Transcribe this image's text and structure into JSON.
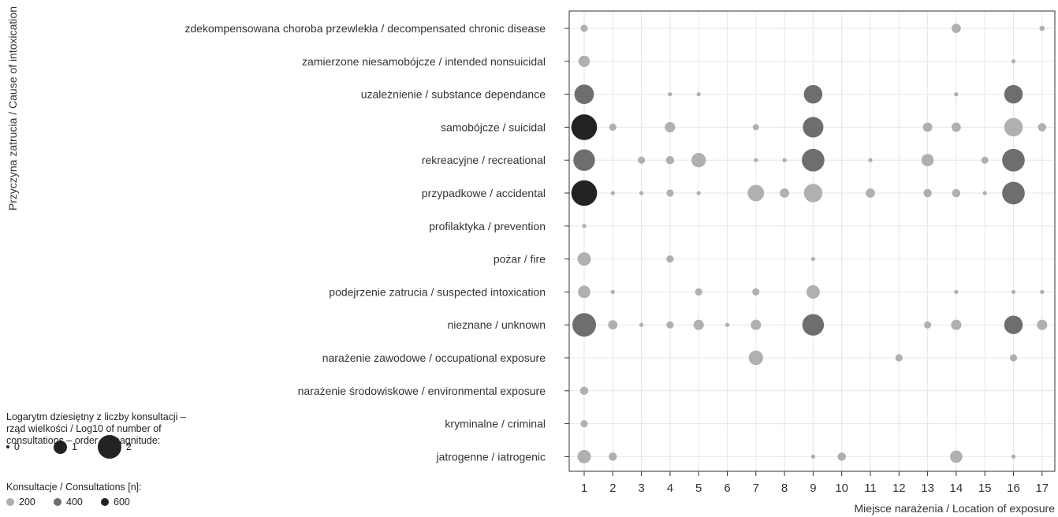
{
  "chart_data": {
    "type": "scatter",
    "title": "",
    "xlabel": "Miejsce narażenia / Location of exposure",
    "ylabel": "Przyczyna zatrucia / Cause of intoxication",
    "x_categories": [
      "1",
      "2",
      "3",
      "4",
      "5",
      "6",
      "7",
      "8",
      "9",
      "10",
      "11",
      "12",
      "13",
      "14",
      "15",
      "16",
      "17"
    ],
    "y_categories": [
      "zdekompensowana choroba przewlekła / decompensated chronic disease",
      "zamierzone niesamobójcze / intended nonsuicidal",
      "uzależnienie / substance dependance",
      "samobójcze / suicidal",
      "rekreacyjne / recreational",
      "przypadkowe / accidental",
      "profilaktyka / prevention",
      "pożar / fire",
      "podejrzenie zatrucia / suspected intoxication",
      "nieznane / unknown",
      "narażenie zawodowe / occupational exposure",
      "narażenie środowiskowe / environmental exposure",
      "kryminalne / criminal",
      "jatrogenne / iatrogenic"
    ],
    "grid": true,
    "size_legend": {
      "title": "Logarytm dziesiętny z liczby konsultacji – rząd wielkości / Log10 of number of consultations – order of magnitude:",
      "values": [
        0,
        1,
        2
      ]
    },
    "color_legend": {
      "title": "Konsultacje / Consultations [n]:",
      "values": [
        200,
        400,
        600
      ],
      "colors": [
        "#b0b0b0",
        "#6e6e6e",
        "#222222"
      ]
    },
    "points": [
      {
        "x": "1",
        "y": "zdekompensowana choroba przewlekła / decompensated chronic disease",
        "log10": 0.4,
        "n": 3
      },
      {
        "x": "14",
        "y": "zdekompensowana choroba przewlekła / decompensated chronic disease",
        "log10": 0.6,
        "n": 4
      },
      {
        "x": "17",
        "y": "zdekompensowana choroba przewlekła / decompensated chronic disease",
        "log10": 0.2,
        "n": 2
      },
      {
        "x": "1",
        "y": "zamierzone niesamobójcze / intended nonsuicidal",
        "log10": 0.8,
        "n": 6
      },
      {
        "x": "16",
        "y": "zamierzone niesamobójcze / intended nonsuicidal",
        "log10": 0.1,
        "n": 1
      },
      {
        "x": "1",
        "y": "uzależnienie / substance dependance",
        "log10": 1.6,
        "n": 330
      },
      {
        "x": "4",
        "y": "uzależnienie / substance dependance",
        "log10": 0.1,
        "n": 1
      },
      {
        "x": "5",
        "y": "uzależnienie / substance dependance",
        "log10": 0.1,
        "n": 1
      },
      {
        "x": "9",
        "y": "uzależnienie / substance dependance",
        "log10": 1.5,
        "n": 330
      },
      {
        "x": "14",
        "y": "uzależnienie / substance dependance",
        "log10": 0.1,
        "n": 1
      },
      {
        "x": "16",
        "y": "uzależnienie / substance dependance",
        "log10": 1.5,
        "n": 330
      },
      {
        "x": "1",
        "y": "samobójcze / suicidal",
        "log10": 2.2,
        "n": 650
      },
      {
        "x": "2",
        "y": "samobójcze / suicidal",
        "log10": 0.4,
        "n": 3
      },
      {
        "x": "4",
        "y": "samobójcze / suicidal",
        "log10": 0.7,
        "n": 5
      },
      {
        "x": "7",
        "y": "samobójcze / suicidal",
        "log10": 0.3,
        "n": 2
      },
      {
        "x": "9",
        "y": "samobójcze / suicidal",
        "log10": 1.7,
        "n": 330
      },
      {
        "x": "13",
        "y": "samobójcze / suicidal",
        "log10": 0.6,
        "n": 4
      },
      {
        "x": "14",
        "y": "samobójcze / suicidal",
        "log10": 0.6,
        "n": 4
      },
      {
        "x": "16",
        "y": "samobójcze / suicidal",
        "log10": 1.5,
        "n": 120
      },
      {
        "x": "17",
        "y": "samobójcze / suicidal",
        "log10": 0.5,
        "n": 3
      },
      {
        "x": "1",
        "y": "rekreacyjne / recreational",
        "log10": 1.8,
        "n": 330
      },
      {
        "x": "3",
        "y": "rekreacyjne / recreational",
        "log10": 0.4,
        "n": 3
      },
      {
        "x": "4",
        "y": "rekreacyjne / recreational",
        "log10": 0.5,
        "n": 3
      },
      {
        "x": "5",
        "y": "rekreacyjne / recreational",
        "log10": 1.1,
        "n": 12
      },
      {
        "x": "7",
        "y": "rekreacyjne / recreational",
        "log10": 0.1,
        "n": 1
      },
      {
        "x": "8",
        "y": "rekreacyjne / recreational",
        "log10": 0.1,
        "n": 1
      },
      {
        "x": "9",
        "y": "rekreacyjne / recreational",
        "log10": 1.9,
        "n": 330
      },
      {
        "x": "11",
        "y": "rekreacyjne / recreational",
        "log10": 0.1,
        "n": 1
      },
      {
        "x": "13",
        "y": "rekreacyjne / recreational",
        "log10": 0.9,
        "n": 8
      },
      {
        "x": "15",
        "y": "rekreacyjne / recreational",
        "log10": 0.4,
        "n": 3
      },
      {
        "x": "16",
        "y": "rekreacyjne / recreational",
        "log10": 1.9,
        "n": 330
      },
      {
        "x": "1",
        "y": "przypadkowe / accidental",
        "log10": 2.2,
        "n": 650
      },
      {
        "x": "2",
        "y": "przypadkowe / accidental",
        "log10": 0.1,
        "n": 1
      },
      {
        "x": "3",
        "y": "przypadkowe / accidental",
        "log10": 0.1,
        "n": 1
      },
      {
        "x": "4",
        "y": "przypadkowe / accidental",
        "log10": 0.4,
        "n": 3
      },
      {
        "x": "5",
        "y": "przypadkowe / accidental",
        "log10": 0.1,
        "n": 1
      },
      {
        "x": "7",
        "y": "przypadkowe / accidental",
        "log10": 1.3,
        "n": 20
      },
      {
        "x": "8",
        "y": "przypadkowe / accidental",
        "log10": 0.6,
        "n": 4
      },
      {
        "x": "9",
        "y": "przypadkowe / accidental",
        "log10": 1.5,
        "n": 120
      },
      {
        "x": "11",
        "y": "przypadkowe / accidental",
        "log10": 0.6,
        "n": 4
      },
      {
        "x": "13",
        "y": "przypadkowe / accidental",
        "log10": 0.5,
        "n": 3
      },
      {
        "x": "14",
        "y": "przypadkowe / accidental",
        "log10": 0.5,
        "n": 3
      },
      {
        "x": "15",
        "y": "przypadkowe / accidental",
        "log10": 0.1,
        "n": 1
      },
      {
        "x": "16",
        "y": "przypadkowe / accidental",
        "log10": 1.9,
        "n": 330
      },
      {
        "x": "1",
        "y": "profilaktyka / prevention",
        "log10": 0.1,
        "n": 1
      },
      {
        "x": "1",
        "y": "pożar / fire",
        "log10": 1.0,
        "n": 10
      },
      {
        "x": "4",
        "y": "pożar / fire",
        "log10": 0.4,
        "n": 3
      },
      {
        "x": "9",
        "y": "pożar / fire",
        "log10": 0.1,
        "n": 1
      },
      {
        "x": "1",
        "y": "podejrzenie zatrucia / suspected intoxication",
        "log10": 0.9,
        "n": 8
      },
      {
        "x": "2",
        "y": "podejrzenie zatrucia / suspected intoxication",
        "log10": 0.1,
        "n": 1
      },
      {
        "x": "5",
        "y": "podejrzenie zatrucia / suspected intoxication",
        "log10": 0.4,
        "n": 3
      },
      {
        "x": "7",
        "y": "podejrzenie zatrucia / suspected intoxication",
        "log10": 0.4,
        "n": 3
      },
      {
        "x": "9",
        "y": "podejrzenie zatrucia / suspected intoxication",
        "log10": 1.0,
        "n": 10
      },
      {
        "x": "14",
        "y": "podejrzenie zatrucia / suspected intoxication",
        "log10": 0.1,
        "n": 1
      },
      {
        "x": "16",
        "y": "podejrzenie zatrucia / suspected intoxication",
        "log10": 0.1,
        "n": 1
      },
      {
        "x": "17",
        "y": "podejrzenie zatrucia / suspected intoxication",
        "log10": 0.1,
        "n": 1
      },
      {
        "x": "1",
        "y": "nieznane / unknown",
        "log10": 2.0,
        "n": 330
      },
      {
        "x": "2",
        "y": "nieznane / unknown",
        "log10": 0.6,
        "n": 4
      },
      {
        "x": "3",
        "y": "nieznane / unknown",
        "log10": 0.1,
        "n": 1
      },
      {
        "x": "4",
        "y": "nieznane / unknown",
        "log10": 0.4,
        "n": 3
      },
      {
        "x": "5",
        "y": "nieznane / unknown",
        "log10": 0.7,
        "n": 5
      },
      {
        "x": "6",
        "y": "nieznane / unknown",
        "log10": 0.1,
        "n": 1
      },
      {
        "x": "7",
        "y": "nieznane / unknown",
        "log10": 0.7,
        "n": 5
      },
      {
        "x": "9",
        "y": "nieznane / unknown",
        "log10": 1.8,
        "n": 330
      },
      {
        "x": "13",
        "y": "nieznane / unknown",
        "log10": 0.4,
        "n": 3
      },
      {
        "x": "14",
        "y": "nieznane / unknown",
        "log10": 0.7,
        "n": 5
      },
      {
        "x": "16",
        "y": "nieznane / unknown",
        "log10": 1.5,
        "n": 330
      },
      {
        "x": "17",
        "y": "nieznane / unknown",
        "log10": 0.7,
        "n": 5
      },
      {
        "x": "7",
        "y": "narażenie zawodowe / occupational exposure",
        "log10": 1.1,
        "n": 12
      },
      {
        "x": "12",
        "y": "narażenie zawodowe / occupational exposure",
        "log10": 0.4,
        "n": 3
      },
      {
        "x": "16",
        "y": "narażenie zawodowe / occupational exposure",
        "log10": 0.4,
        "n": 3
      },
      {
        "x": "1",
        "y": "narażenie środowiskowe / environmental exposure",
        "log10": 0.5,
        "n": 3
      },
      {
        "x": "1",
        "y": "kryminalne / criminal",
        "log10": 0.4,
        "n": 3
      },
      {
        "x": "1",
        "y": "jatrogenne / iatrogenic",
        "log10": 1.0,
        "n": 10
      },
      {
        "x": "2",
        "y": "jatrogenne / iatrogenic",
        "log10": 0.5,
        "n": 3
      },
      {
        "x": "9",
        "y": "jatrogenne / iatrogenic",
        "log10": 0.1,
        "n": 1
      },
      {
        "x": "10",
        "y": "jatrogenne / iatrogenic",
        "log10": 0.5,
        "n": 3
      },
      {
        "x": "14",
        "y": "jatrogenne / iatrogenic",
        "log10": 0.9,
        "n": 8
      },
      {
        "x": "16",
        "y": "jatrogenne / iatrogenic",
        "log10": 0.1,
        "n": 1
      }
    ]
  }
}
